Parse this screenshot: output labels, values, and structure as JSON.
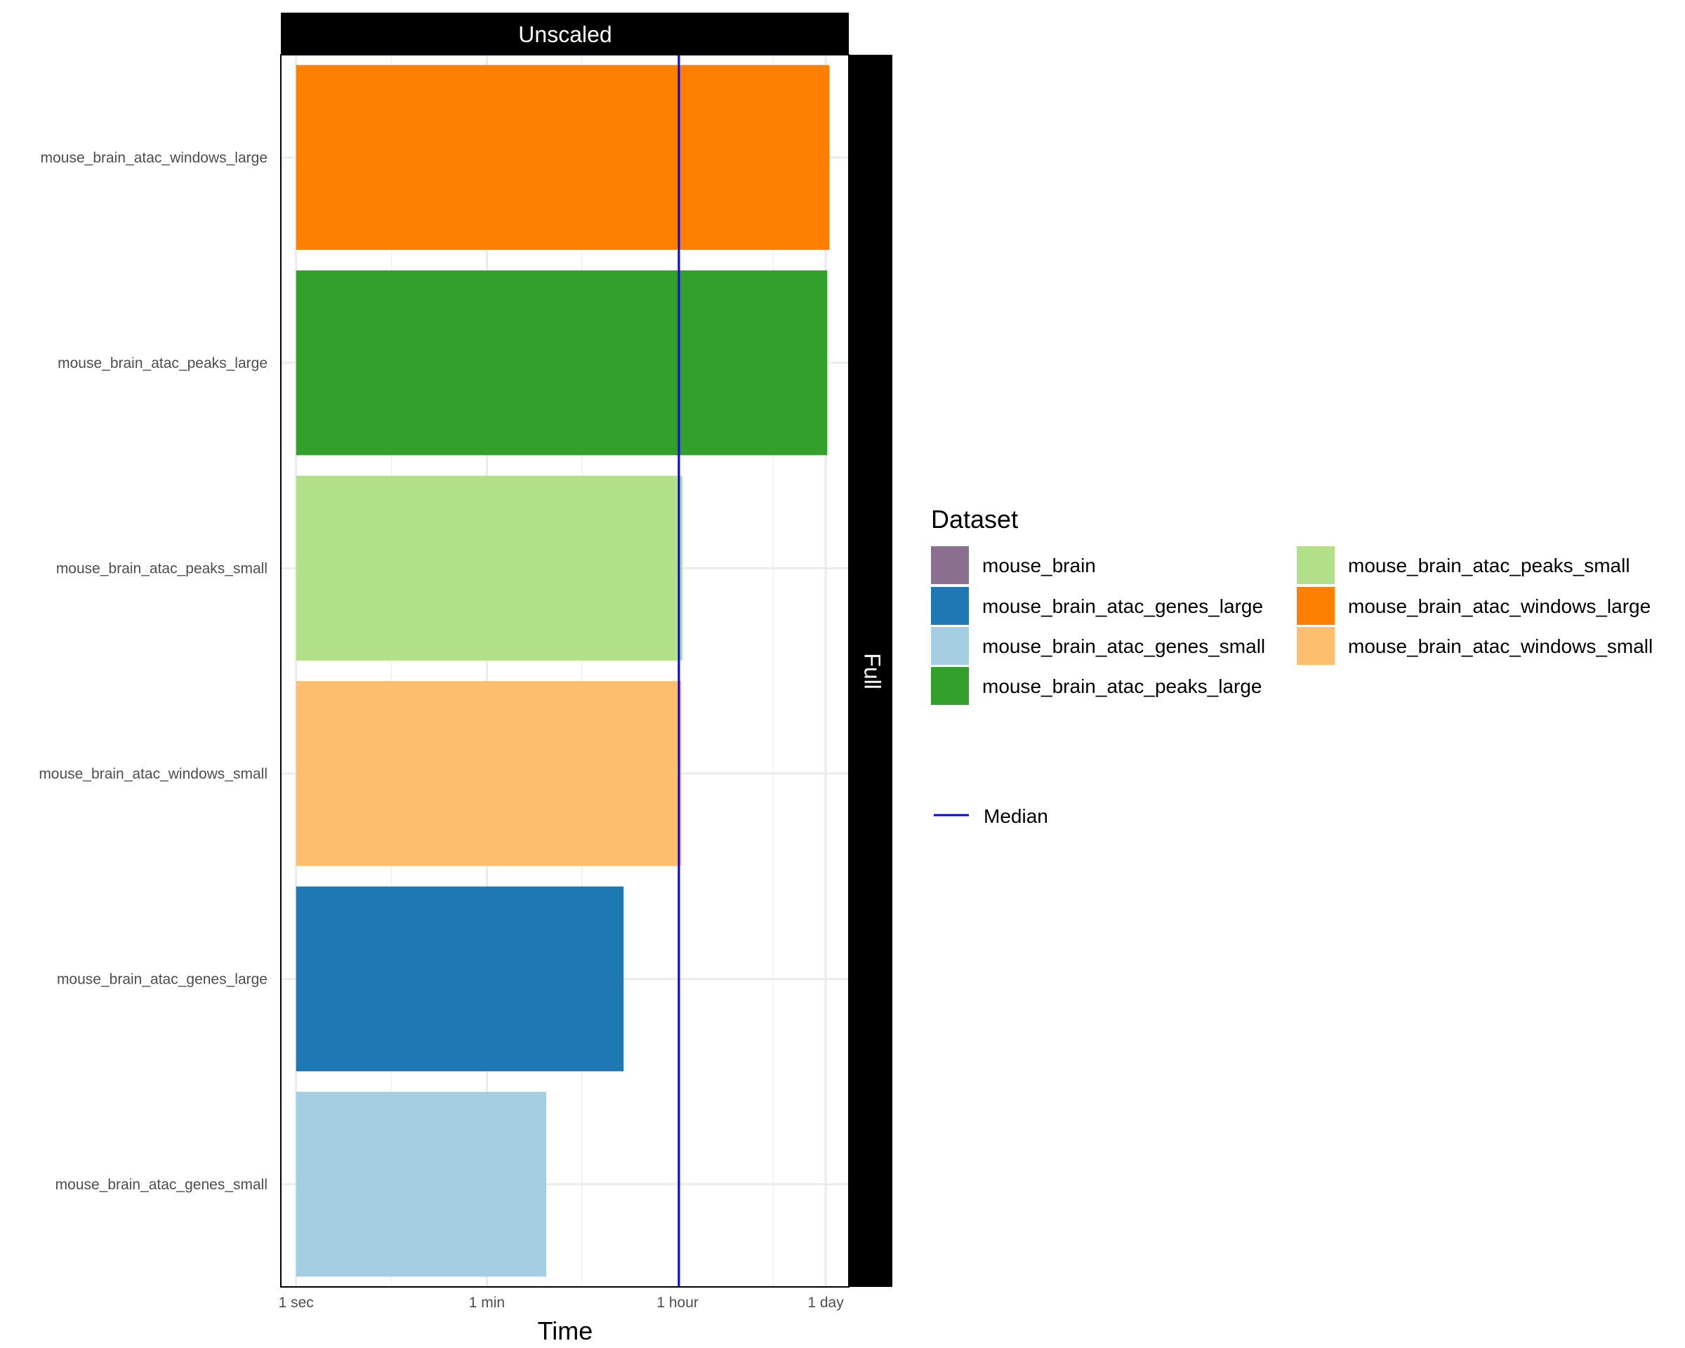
{
  "chart_data": {
    "type": "bar",
    "orientation": "horizontal",
    "facet_column_label": "Unscaled",
    "facet_row_label": "Full",
    "xlabel": "Time",
    "ylabel": "",
    "x_scale": "log",
    "x_unit": "seconds",
    "x_ticks": [
      {
        "label": "1 sec",
        "value": 1
      },
      {
        "label": "1 min",
        "value": 60
      },
      {
        "label": "1 hour",
        "value": 3600
      },
      {
        "label": "1 day",
        "value": 86400
      }
    ],
    "x_minor_ticks": [
      7.75,
      465,
      27900
    ],
    "xlim": [
      0.721,
      142000
    ],
    "categories": [
      "mouse_brain_atac_windows_large",
      "mouse_brain_atac_peaks_large",
      "mouse_brain_atac_peaks_small",
      "mouse_brain_atac_windows_small",
      "mouse_brain_atac_genes_large",
      "mouse_brain_atac_genes_small"
    ],
    "values": [
      93800,
      89500,
      4000,
      3900,
      1130,
      215
    ],
    "bar_colors": [
      "#ff7f00",
      "#33a02c",
      "#b2df8a",
      "#fdbf6f",
      "#1f78b4",
      "#a6cee3"
    ],
    "median": {
      "label": "Median",
      "value": 3700,
      "color": "#0000ff"
    },
    "legend": {
      "title": "Dataset",
      "placement": "right",
      "entries": [
        {
          "label": "mouse_brain",
          "color": "#8a6f8e"
        },
        {
          "label": "mouse_brain_atac_genes_large",
          "color": "#1f78b4"
        },
        {
          "label": "mouse_brain_atac_genes_small",
          "color": "#a6cee3"
        },
        {
          "label": "mouse_brain_atac_peaks_large",
          "color": "#33a02c"
        },
        {
          "label": "mouse_brain_atac_peaks_small",
          "color": "#b2df8a"
        },
        {
          "label": "mouse_brain_atac_windows_large",
          "color": "#ff7f00"
        },
        {
          "label": "mouse_brain_atac_windows_small",
          "color": "#fdbf6f"
        }
      ]
    },
    "grid": true
  }
}
